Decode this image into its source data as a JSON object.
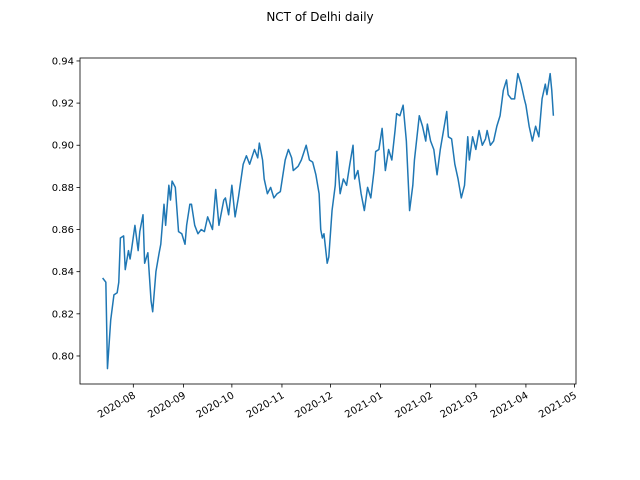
{
  "chart_data": {
    "type": "line",
    "title": "NCT of Delhi daily",
    "x": [
      "2020-07-13",
      "2020-07-15",
      "2020-07-16",
      "2020-07-18",
      "2020-07-20",
      "2020-07-22",
      "2020-07-23",
      "2020-07-24",
      "2020-07-26",
      "2020-07-27",
      "2020-07-29",
      "2020-07-30",
      "2020-07-31",
      "2020-08-02",
      "2020-08-04",
      "2020-08-05",
      "2020-08-07",
      "2020-08-08",
      "2020-08-10",
      "2020-08-12",
      "2020-08-13",
      "2020-08-15",
      "2020-08-17",
      "2020-08-18",
      "2020-08-20",
      "2020-08-21",
      "2020-08-23",
      "2020-08-24",
      "2020-08-25",
      "2020-08-27",
      "2020-08-29",
      "2020-08-31",
      "2020-09-02",
      "2020-09-03",
      "2020-09-05",
      "2020-09-06",
      "2020-09-08",
      "2020-09-10",
      "2020-09-12",
      "2020-09-14",
      "2020-09-16",
      "2020-09-19",
      "2020-09-21",
      "2020-09-23",
      "2020-09-26",
      "2020-09-27",
      "2020-09-29",
      "2020-10-01",
      "2020-10-03",
      "2020-10-05",
      "2020-10-08",
      "2020-10-10",
      "2020-10-12",
      "2020-10-15",
      "2020-10-17",
      "2020-10-18",
      "2020-10-20",
      "2020-10-21",
      "2020-10-23",
      "2020-10-25",
      "2020-10-27",
      "2020-10-29",
      "2020-10-31",
      "2020-11-03",
      "2020-11-05",
      "2020-11-07",
      "2020-11-08",
      "2020-11-11",
      "2020-11-13",
      "2020-11-16",
      "2020-11-18",
      "2020-11-20",
      "2020-11-22",
      "2020-11-24",
      "2020-11-25",
      "2020-11-26",
      "2020-11-27",
      "2020-11-29",
      "2020-11-30",
      "2020-12-02",
      "2020-12-04",
      "2020-12-05",
      "2020-12-07",
      "2020-12-09",
      "2020-12-11",
      "2020-12-13",
      "2020-12-15",
      "2020-12-16",
      "2020-12-18",
      "2020-12-20",
      "2020-12-22",
      "2020-12-24",
      "2020-12-26",
      "2020-12-28",
      "2020-12-29",
      "2020-12-31",
      "2021-01-02",
      "2021-01-04",
      "2021-01-06",
      "2021-01-08",
      "2021-01-10",
      "2021-01-11",
      "2021-01-13",
      "2021-01-15",
      "2021-01-17",
      "2021-01-19",
      "2021-01-21",
      "2021-01-22",
      "2021-01-25",
      "2021-01-27",
      "2021-01-29",
      "2021-01-30",
      "2021-02-01",
      "2021-02-03",
      "2021-02-05",
      "2021-02-07",
      "2021-02-09",
      "2021-02-11",
      "2021-02-12",
      "2021-02-14",
      "2021-02-16",
      "2021-02-18",
      "2021-02-20",
      "2021-02-22",
      "2021-02-24",
      "2021-02-25",
      "2021-02-27",
      "2021-03-01",
      "2021-03-03",
      "2021-03-05",
      "2021-03-07",
      "2021-03-08",
      "2021-03-10",
      "2021-03-12",
      "2021-03-14",
      "2021-03-16",
      "2021-03-18",
      "2021-03-20",
      "2021-03-21",
      "2021-03-23",
      "2021-03-25",
      "2021-03-27",
      "2021-03-29",
      "2021-03-31",
      "2021-04-01",
      "2021-04-03",
      "2021-04-05",
      "2021-04-07",
      "2021-04-09",
      "2021-04-11",
      "2021-04-13",
      "2021-04-14",
      "2021-04-16",
      "2021-04-17",
      "2021-04-18"
    ],
    "series": [
      {
        "color": "#1f77b4",
        "values": [
          0.837,
          0.835,
          0.794,
          0.817,
          0.829,
          0.83,
          0.835,
          0.856,
          0.857,
          0.841,
          0.85,
          0.846,
          0.851,
          0.862,
          0.85,
          0.859,
          0.867,
          0.844,
          0.849,
          0.826,
          0.821,
          0.84,
          0.849,
          0.853,
          0.872,
          0.862,
          0.881,
          0.874,
          0.883,
          0.88,
          0.859,
          0.858,
          0.853,
          0.862,
          0.872,
          0.872,
          0.862,
          0.858,
          0.86,
          0.859,
          0.866,
          0.86,
          0.879,
          0.862,
          0.874,
          0.875,
          0.867,
          0.881,
          0.866,
          0.875,
          0.891,
          0.895,
          0.891,
          0.898,
          0.894,
          0.901,
          0.893,
          0.884,
          0.877,
          0.88,
          0.875,
          0.877,
          0.878,
          0.893,
          0.898,
          0.894,
          0.888,
          0.89,
          0.893,
          0.9,
          0.893,
          0.892,
          0.886,
          0.877,
          0.86,
          0.856,
          0.858,
          0.844,
          0.847,
          0.869,
          0.881,
          0.897,
          0.877,
          0.884,
          0.881,
          0.891,
          0.9,
          0.884,
          0.888,
          0.877,
          0.869,
          0.88,
          0.875,
          0.888,
          0.897,
          0.898,
          0.908,
          0.888,
          0.898,
          0.893,
          0.907,
          0.915,
          0.914,
          0.919,
          0.902,
          0.869,
          0.881,
          0.893,
          0.914,
          0.909,
          0.902,
          0.91,
          0.902,
          0.898,
          0.886,
          0.898,
          0.907,
          0.916,
          0.904,
          0.903,
          0.891,
          0.884,
          0.875,
          0.881,
          0.904,
          0.893,
          0.904,
          0.898,
          0.907,
          0.9,
          0.903,
          0.907,
          0.9,
          0.902,
          0.909,
          0.914,
          0.926,
          0.931,
          0.924,
          0.922,
          0.922,
          0.934,
          0.929,
          0.922,
          0.919,
          0.909,
          0.902,
          0.909,
          0.904,
          0.922,
          0.929,
          0.924,
          0.934,
          0.926,
          0.914
        ]
      }
    ],
    "xlim": [
      "2020-06-29",
      "2021-05-02"
    ],
    "xticks": [
      {
        "value": "2020-08-01",
        "label": "2020-08"
      },
      {
        "value": "2020-09-01",
        "label": "2020-09"
      },
      {
        "value": "2020-10-01",
        "label": "2020-10"
      },
      {
        "value": "2020-11-01",
        "label": "2020-11"
      },
      {
        "value": "2020-12-01",
        "label": "2020-12"
      },
      {
        "value": "2021-01-01",
        "label": "2021-01"
      },
      {
        "value": "2021-02-01",
        "label": "2021-02"
      },
      {
        "value": "2021-03-01",
        "label": "2021-03"
      },
      {
        "value": "2021-04-01",
        "label": "2021-04"
      },
      {
        "value": "2021-05-01",
        "label": "2021-05"
      }
    ],
    "ylim": [
      0.7867,
      0.9414
    ],
    "yticks": [
      {
        "value": 0.8,
        "label": "0.80"
      },
      {
        "value": 0.82,
        "label": "0.82"
      },
      {
        "value": 0.84,
        "label": "0.84"
      },
      {
        "value": 0.86,
        "label": "0.86"
      },
      {
        "value": 0.88,
        "label": "0.88"
      },
      {
        "value": 0.9,
        "label": "0.90"
      },
      {
        "value": 0.92,
        "label": "0.92"
      },
      {
        "value": 0.94,
        "label": "0.94"
      }
    ]
  }
}
